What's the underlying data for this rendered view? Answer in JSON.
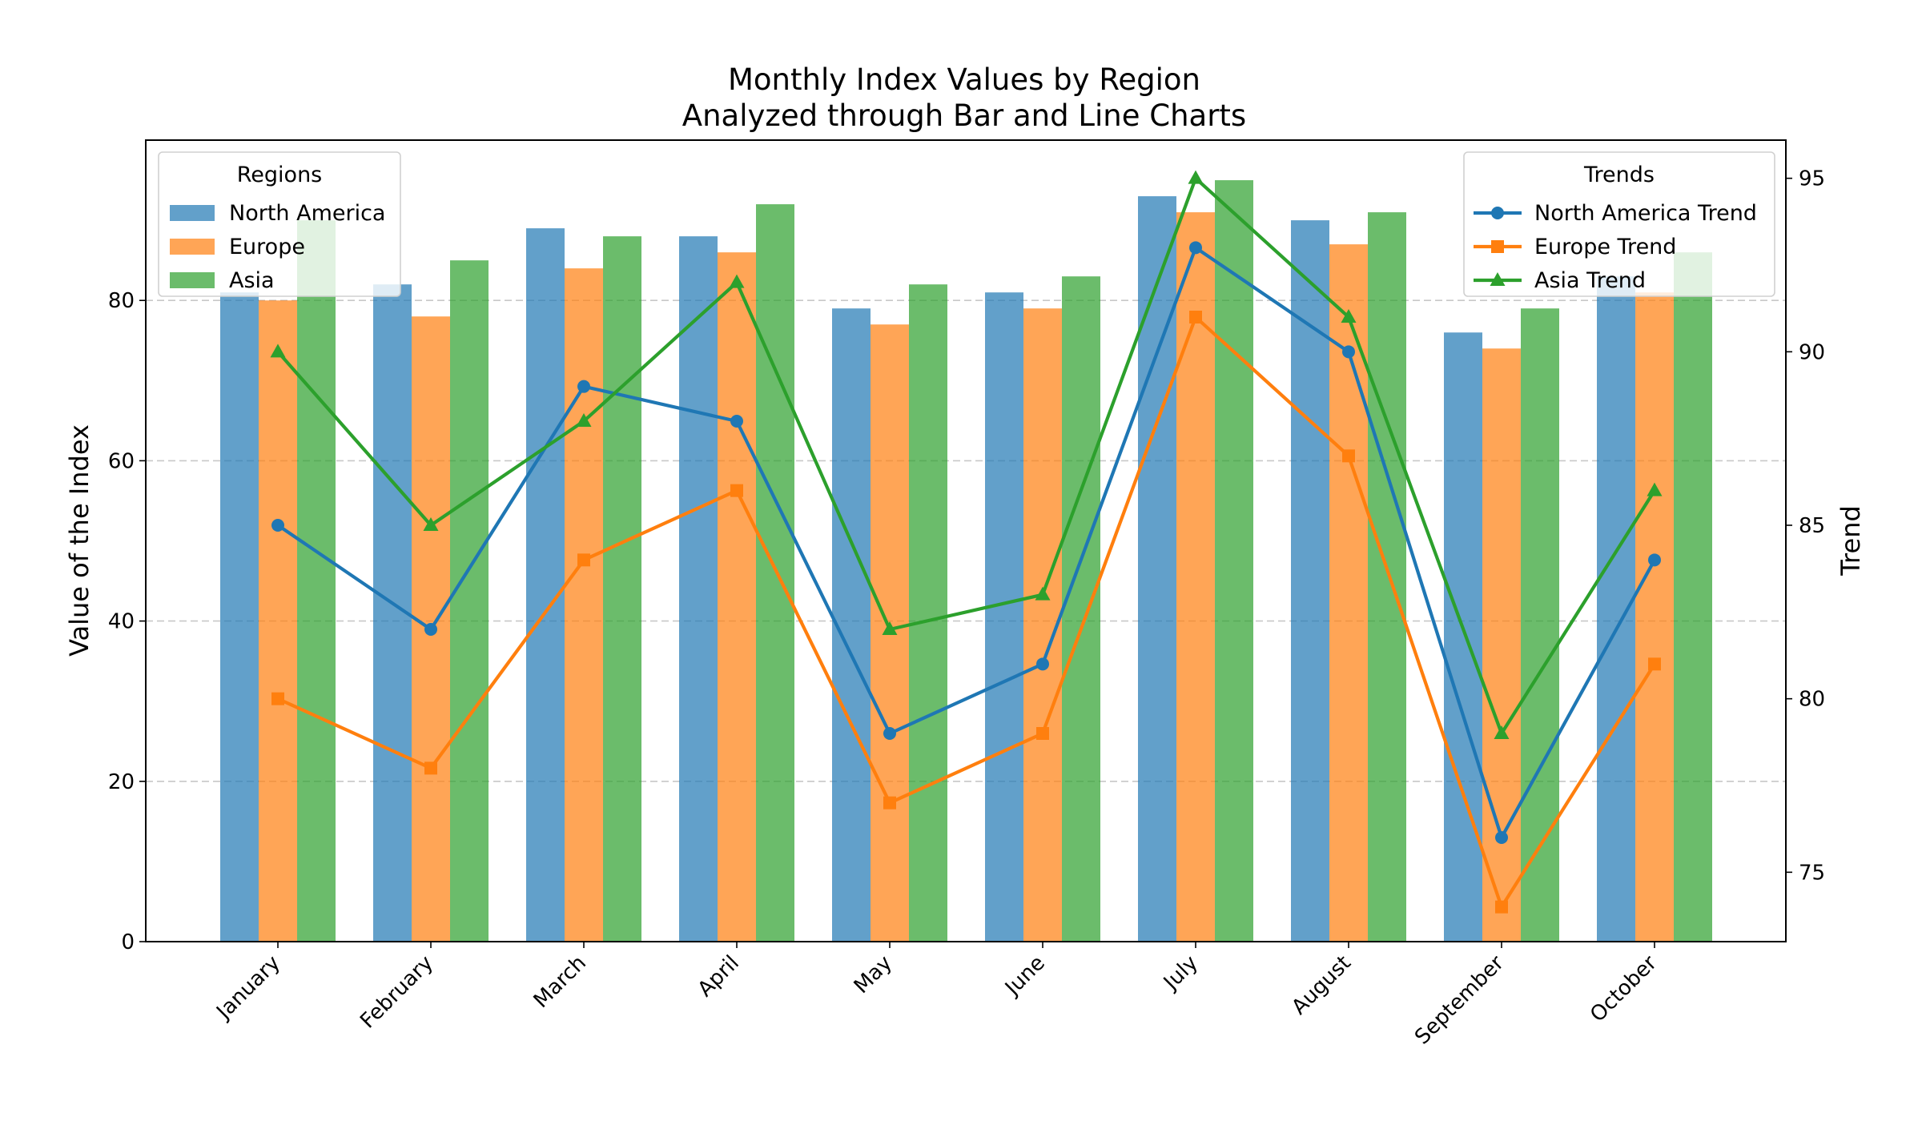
{
  "chart_data": {
    "type": "bar",
    "title": "Monthly Index Values by Region\nAnalyzed through Bar and Line Charts",
    "title_lines": [
      "Monthly Index Values by Region",
      "Analyzed through Bar and Line Charts"
    ],
    "xlabel": "",
    "ylabel": "Value of the Index",
    "ylabel_right": "Trend",
    "categories": [
      "January",
      "February",
      "March",
      "April",
      "May",
      "June",
      "July",
      "August",
      "September",
      "October"
    ],
    "ylim": [
      0,
      100
    ],
    "yticks": [
      "0",
      "20",
      "40",
      "60",
      "80"
    ],
    "ylim_right": [
      73,
      96.1
    ],
    "yticks_right": [
      "75",
      "80",
      "85",
      "90",
      "95"
    ],
    "grid": "horizontal dashed",
    "bar_series": [
      {
        "name": "North America",
        "color": "#1f77b4",
        "values": [
          81,
          82,
          89,
          88,
          79,
          81,
          93,
          90,
          76,
          83
        ]
      },
      {
        "name": "Europe",
        "color": "#ff7f0e",
        "values": [
          80,
          78,
          84,
          86,
          77,
          79,
          91,
          87,
          74,
          81
        ]
      },
      {
        "name": "Asia",
        "color": "#2ca02c",
        "values": [
          90,
          85,
          88,
          92,
          82,
          83,
          95,
          91,
          79,
          86
        ]
      }
    ],
    "line_series": [
      {
        "name": "North America Trend",
        "color": "#1f77b4",
        "marker": "circle",
        "values": [
          85,
          82,
          89,
          88,
          79,
          81,
          93,
          90,
          76,
          84
        ]
      },
      {
        "name": "Europe Trend",
        "color": "#ff7f0e",
        "marker": "square",
        "values": [
          80,
          78,
          84,
          86,
          77,
          79,
          91,
          87,
          74,
          81
        ]
      },
      {
        "name": "Asia Trend",
        "color": "#2ca02c",
        "marker": "triangle",
        "values": [
          90,
          85,
          88,
          92,
          82,
          83,
          95,
          91,
          79,
          86
        ]
      }
    ],
    "legends": [
      {
        "title": "Regions",
        "placement": "top-left",
        "entries": [
          "North America",
          "Europe",
          "Asia"
        ]
      },
      {
        "title": "Trends",
        "placement": "top-right",
        "entries": [
          "North America Trend",
          "Europe Trend",
          "Asia Trend"
        ]
      }
    ]
  }
}
